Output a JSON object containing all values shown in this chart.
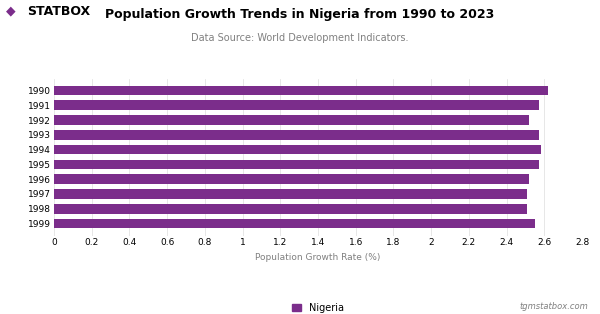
{
  "title": "Population Growth Trends in Nigeria from 1990 to 2023",
  "subtitle": "Data Source: World Development Indicators.",
  "xlabel": "Population Growth Rate (%)",
  "years": [
    1990,
    1991,
    1992,
    1993,
    1994,
    1995,
    1996,
    1997,
    1998,
    1999
  ],
  "values": [
    2.62,
    2.57,
    2.52,
    2.57,
    2.58,
    2.57,
    2.52,
    2.51,
    2.51,
    2.55
  ],
  "bar_color": "#7B2D8B",
  "background_color": "#ffffff",
  "xlim": [
    0,
    2.8
  ],
  "xticks": [
    0,
    0.2,
    0.4,
    0.6,
    0.8,
    1.0,
    1.2,
    1.4,
    1.6,
    1.8,
    2.0,
    2.2,
    2.4,
    2.6,
    2.8
  ],
  "legend_label": "Nigeria",
  "watermark": "tgmstatbox.com",
  "logo_text": "STATBOX",
  "logo_diamond": "◆",
  "title_fontsize": 9,
  "subtitle_fontsize": 7,
  "tick_fontsize": 6.5,
  "xlabel_fontsize": 6.5,
  "legend_fontsize": 7,
  "logo_fontsize": 9,
  "watermark_fontsize": 6
}
